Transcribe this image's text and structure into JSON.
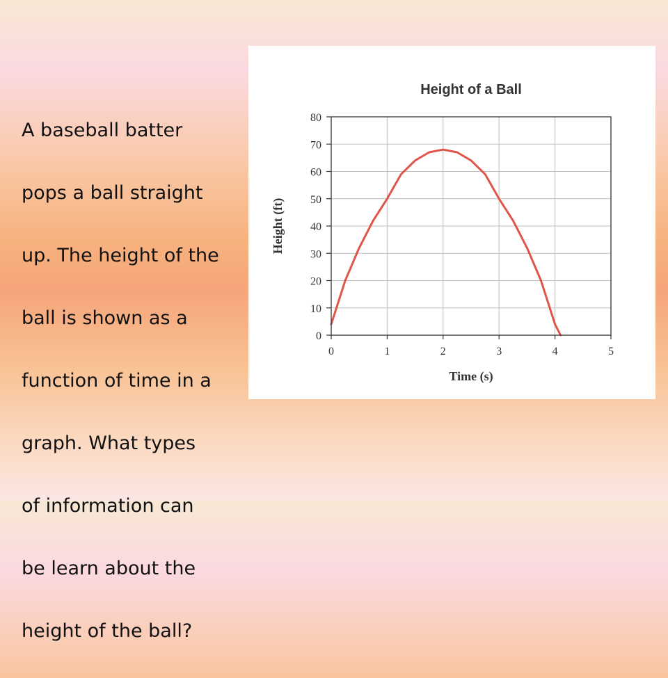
{
  "slide": {
    "text": "A baseball batter pops a ball straight up. The height of the ball is shown as a function of time in a graph.  What types of information can be learn about the height of the ball?",
    "lines": [
      "A baseball batter",
      "pops a ball straight",
      "up. The height of the",
      "ball is shown as a",
      "function of time in a",
      "graph.  What types",
      "of information can",
      "be learn about the",
      "height of the ball?"
    ]
  },
  "chart_data": {
    "type": "line",
    "title": "Height of a Ball",
    "xlabel": "Time (s)",
    "ylabel": "Height (ft)",
    "xlim": [
      0,
      5
    ],
    "ylim": [
      0,
      80
    ],
    "x_ticks": [
      0,
      1,
      2,
      3,
      4,
      5
    ],
    "y_ticks": [
      0,
      10,
      20,
      30,
      40,
      50,
      60,
      70,
      80
    ],
    "grid": true,
    "series": [
      {
        "color": "#e0554a",
        "x": [
          0,
          0.25,
          0.5,
          0.75,
          1,
          1.25,
          1.5,
          1.75,
          2,
          2.25,
          2.5,
          2.75,
          3,
          3.25,
          3.5,
          3.75,
          4,
          4.1
        ],
        "y": [
          4,
          20,
          32,
          42,
          50,
          59,
          64,
          67,
          68,
          67,
          64,
          59,
          50,
          42,
          32,
          20,
          4,
          0
        ]
      }
    ]
  }
}
